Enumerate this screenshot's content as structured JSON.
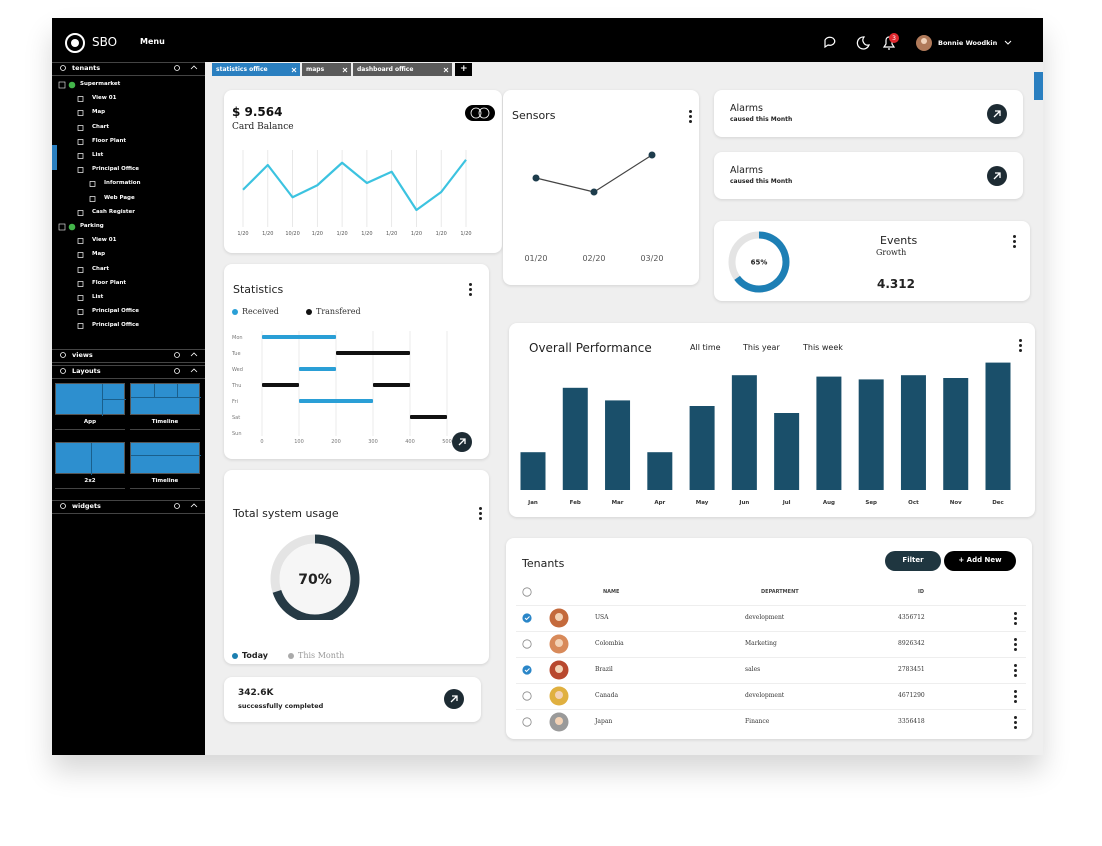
{
  "header": {
    "logo": "SBO",
    "menu": "Menu",
    "notifications": "3",
    "user": "Bonnie Woodkin"
  },
  "sidebar": {
    "tenants": {
      "title": "tenants",
      "tree": [
        {
          "label": "Supermarket",
          "children": [
            {
              "label": "View 01"
            },
            {
              "label": "Map"
            },
            {
              "label": "Chart"
            },
            {
              "label": "Floor Plant"
            },
            {
              "label": "List"
            },
            {
              "label": "Principal Office",
              "children": [
                {
                  "label": "Information"
                },
                {
                  "label": "Web Page"
                }
              ]
            },
            {
              "label": "Cash Register"
            }
          ]
        },
        {
          "label": "Parking",
          "children": [
            {
              "label": "View 01"
            },
            {
              "label": "Map"
            },
            {
              "label": "Chart"
            },
            {
              "label": "Floor Plant"
            },
            {
              "label": "List"
            },
            {
              "label": "Principal Office"
            },
            {
              "label": "Principal Office"
            }
          ]
        }
      ]
    },
    "views": {
      "title": "views"
    },
    "layouts": {
      "title": "Layouts",
      "tiles": [
        "App",
        "Timeline",
        "2x2",
        "Timeline"
      ]
    },
    "widgets": {
      "title": "widgets"
    }
  },
  "tabs": {
    "items": [
      "statistics office",
      "maps",
      "dashboard office"
    ],
    "new_tab": "+"
  },
  "widgets": {
    "card_balance": {
      "amount": "$ 9.564",
      "label": "Card Balance",
      "chart_data": {
        "type": "line",
        "categories": [
          "1/20",
          "1/20",
          "10/20",
          "1/20",
          "1/20",
          "1/20",
          "1/20",
          "1/20",
          "1/20",
          "1/20"
        ],
        "values": [
          47,
          80,
          37,
          53,
          83,
          56,
          71,
          20,
          44,
          87
        ],
        "color": "#3cc3e0",
        "ylim": [
          0,
          100
        ],
        "grid": true
      }
    },
    "sensors": {
      "chart_data": {
        "type": "line",
        "title": "Sensors",
        "categories": [
          "01/20",
          "02/20",
          "03/20"
        ],
        "values": [
          52,
          38,
          75
        ],
        "color": "#444444",
        "marker_color": "#1d3c4c",
        "markers": true,
        "ylim": [
          0,
          100
        ],
        "grid": false
      }
    },
    "statistics": {
      "chart_data": {
        "type": "rangebar",
        "title": "Statistics",
        "categories": [
          "Mon",
          "Tue",
          "Wed",
          "Thu",
          "Fri",
          "Sat",
          "Sun"
        ],
        "xlim": [
          0,
          500
        ],
        "xticks": [
          0,
          100,
          200,
          300,
          400,
          500
        ],
        "grid": true,
        "series": [
          {
            "name": "Received",
            "color": "#2a9fd6",
            "segments": [
              {
                "category": "Mon",
                "start": 0,
                "end": 200
              },
              {
                "category": "Wed",
                "start": 100,
                "end": 200
              },
              {
                "category": "Fri",
                "start": 100,
                "end": 300
              }
            ]
          },
          {
            "name": "Transfered",
            "color": "#111111",
            "segments": [
              {
                "category": "Tue",
                "start": 200,
                "end": 400
              },
              {
                "category": "Thu",
                "start": 0,
                "end": 100
              },
              {
                "category": "Thu",
                "start": 300,
                "end": 400
              },
              {
                "category": "Sat",
                "start": 400,
                "end": 500
              }
            ]
          }
        ]
      }
    },
    "total_usage": {
      "chart_data": {
        "type": "donut",
        "title": "Total system usage",
        "values": [
          70
        ],
        "value_labels": [
          "70%"
        ],
        "ylim": [
          0,
          100
        ],
        "color": "#263a45",
        "track_color": "#e4e4e4",
        "legend": [
          {
            "name": "Today",
            "color": "#1b7fb0"
          },
          {
            "name": "This Month",
            "color": "#aaaaaa"
          }
        ]
      }
    },
    "completed": {
      "value": "342.6K",
      "label": "successfully completed"
    },
    "alarms": [
      {
        "title": "Alarms",
        "subtitle": "caused this Month"
      },
      {
        "title": "Alarms",
        "subtitle": "caused this Month"
      }
    ],
    "events": {
      "title": "Events",
      "subtitle": "Growth",
      "value": "4.312",
      "chart_data": {
        "type": "donut",
        "values": [
          65
        ],
        "value_labels": [
          "65%"
        ],
        "ylim": [
          0,
          100
        ],
        "color": "#1d7fb5",
        "track_color": "#e4e4e4"
      }
    },
    "overall": {
      "filters": [
        "All time",
        "This year",
        "This week"
      ],
      "chart_data": {
        "type": "bar",
        "title": "Overall Performance",
        "categories": [
          "Jan",
          "Feb",
          "Mar",
          "Apr",
          "May",
          "Jun",
          "Jul",
          "Aug",
          "Sep",
          "Oct",
          "Nov",
          "Dec"
        ],
        "values": [
          27,
          73,
          64,
          27,
          60,
          82,
          55,
          81,
          79,
          82,
          80,
          91
        ],
        "color": "#1a4f6a",
        "ylim": [
          0,
          100
        ]
      }
    },
    "tenants": {
      "title": "Tenants",
      "buttons": [
        "Filter",
        "+ Add New"
      ],
      "columns": [
        "NAME",
        "DEPARTMENT",
        "ID"
      ],
      "rows": [
        {
          "name": "USA",
          "department": "development",
          "id": "4356712",
          "checked": true
        },
        {
          "name": "Colombia",
          "department": "Marketing",
          "id": "8926342",
          "checked": false
        },
        {
          "name": "Brazil",
          "department": "sales",
          "id": "2783451",
          "checked": true
        },
        {
          "name": "Canada",
          "department": "development",
          "id": "4671290",
          "checked": false
        },
        {
          "name": "Japan",
          "department": "Finance",
          "id": "3356418",
          "checked": false
        }
      ]
    }
  }
}
